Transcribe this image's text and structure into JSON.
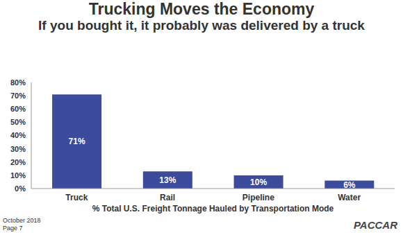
{
  "chart_data": {
    "type": "bar",
    "title": "Trucking Moves the Economy",
    "subtitle": "If you bought it, it probably was delivered by a truck",
    "x_label": "% Total U.S. Freight Tonnage Hauled by Transportation Mode",
    "categories": [
      "Truck",
      "Rail",
      "Pipeline",
      "Water"
    ],
    "values": [
      71,
      13,
      10,
      6
    ],
    "value_labels": [
      "71%",
      "13%",
      "10%",
      "6%"
    ],
    "data_labels": true,
    "color": "#3c4b9b",
    "ylim": [
      0,
      80
    ],
    "yticks": [
      {
        "value": 0,
        "label": "0%"
      },
      {
        "value": 10,
        "label": "10%"
      },
      {
        "value": 20,
        "label": "20%"
      },
      {
        "value": 30,
        "label": "30%"
      },
      {
        "value": 40,
        "label": "40%"
      },
      {
        "value": 50,
        "label": "50%"
      },
      {
        "value": 60,
        "label": "60%"
      },
      {
        "value": 70,
        "label": "70%"
      },
      {
        "value": 80,
        "label": "80%"
      }
    ],
    "grid": false
  },
  "footer": {
    "date": "October 2018",
    "page": "Page 7",
    "logo": "PACCAR"
  }
}
